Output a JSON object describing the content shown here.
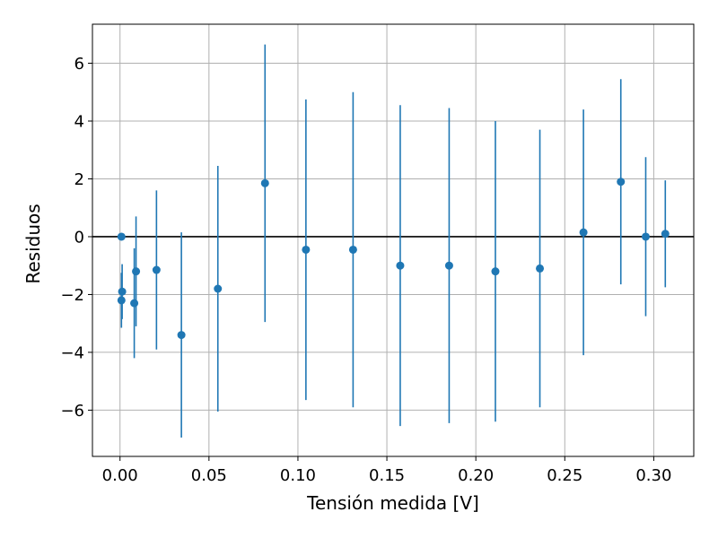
{
  "chart_data": {
    "type": "scatter",
    "title": "",
    "xlabel": "Tensión medida [V]",
    "ylabel": "Residuos",
    "xlim": [
      -0.0155,
      0.3225
    ],
    "ylim": [
      -7.6,
      7.35
    ],
    "xticks": [
      0.0,
      0.05,
      0.1,
      0.15,
      0.2,
      0.25,
      0.3
    ],
    "xtick_labels": [
      "0.00",
      "0.05",
      "0.10",
      "0.15",
      "0.20",
      "0.25",
      "0.30"
    ],
    "yticks": [
      -6,
      -4,
      -2,
      0,
      2,
      4,
      6
    ],
    "ytick_labels": [
      "−6",
      "−4",
      "−2",
      "0",
      "2",
      "4",
      "6"
    ],
    "grid": true,
    "reference_line_y": 0,
    "colors": {
      "series": "#1f77b4",
      "reference_line": "#000000",
      "grid": "#b0b0b0"
    },
    "series": [
      {
        "points": [
          {
            "x": 0.0008,
            "y": 0.0,
            "err": 0.0
          },
          {
            "x": 0.0008,
            "y": -2.2,
            "err": 0.95
          },
          {
            "x": 0.0012,
            "y": -1.9,
            "err": 0.95
          },
          {
            "x": 0.008,
            "y": -2.3,
            "err": 1.9
          },
          {
            "x": 0.009,
            "y": -1.2,
            "err": 1.9
          },
          {
            "x": 0.0205,
            "y": -1.15,
            "err": 2.75
          },
          {
            "x": 0.0345,
            "y": -3.4,
            "err": 3.55
          },
          {
            "x": 0.055,
            "y": -1.8,
            "err": 4.25
          },
          {
            "x": 0.0815,
            "y": 1.85,
            "err": 4.8
          },
          {
            "x": 0.1045,
            "y": -0.45,
            "err": 5.2
          },
          {
            "x": 0.131,
            "y": -0.45,
            "err": 5.45
          },
          {
            "x": 0.1575,
            "y": -1.0,
            "err": 5.55
          },
          {
            "x": 0.185,
            "y": -1.0,
            "err": 5.45
          },
          {
            "x": 0.211,
            "y": -1.2,
            "err": 5.2
          },
          {
            "x": 0.236,
            "y": -1.1,
            "err": 4.8
          },
          {
            "x": 0.2605,
            "y": 0.15,
            "err": 4.25
          },
          {
            "x": 0.2815,
            "y": 1.9,
            "err": 3.55
          },
          {
            "x": 0.2955,
            "y": 0.0,
            "err": 2.75
          },
          {
            "x": 0.3065,
            "y": 0.1,
            "err": 1.85
          }
        ]
      }
    ]
  }
}
